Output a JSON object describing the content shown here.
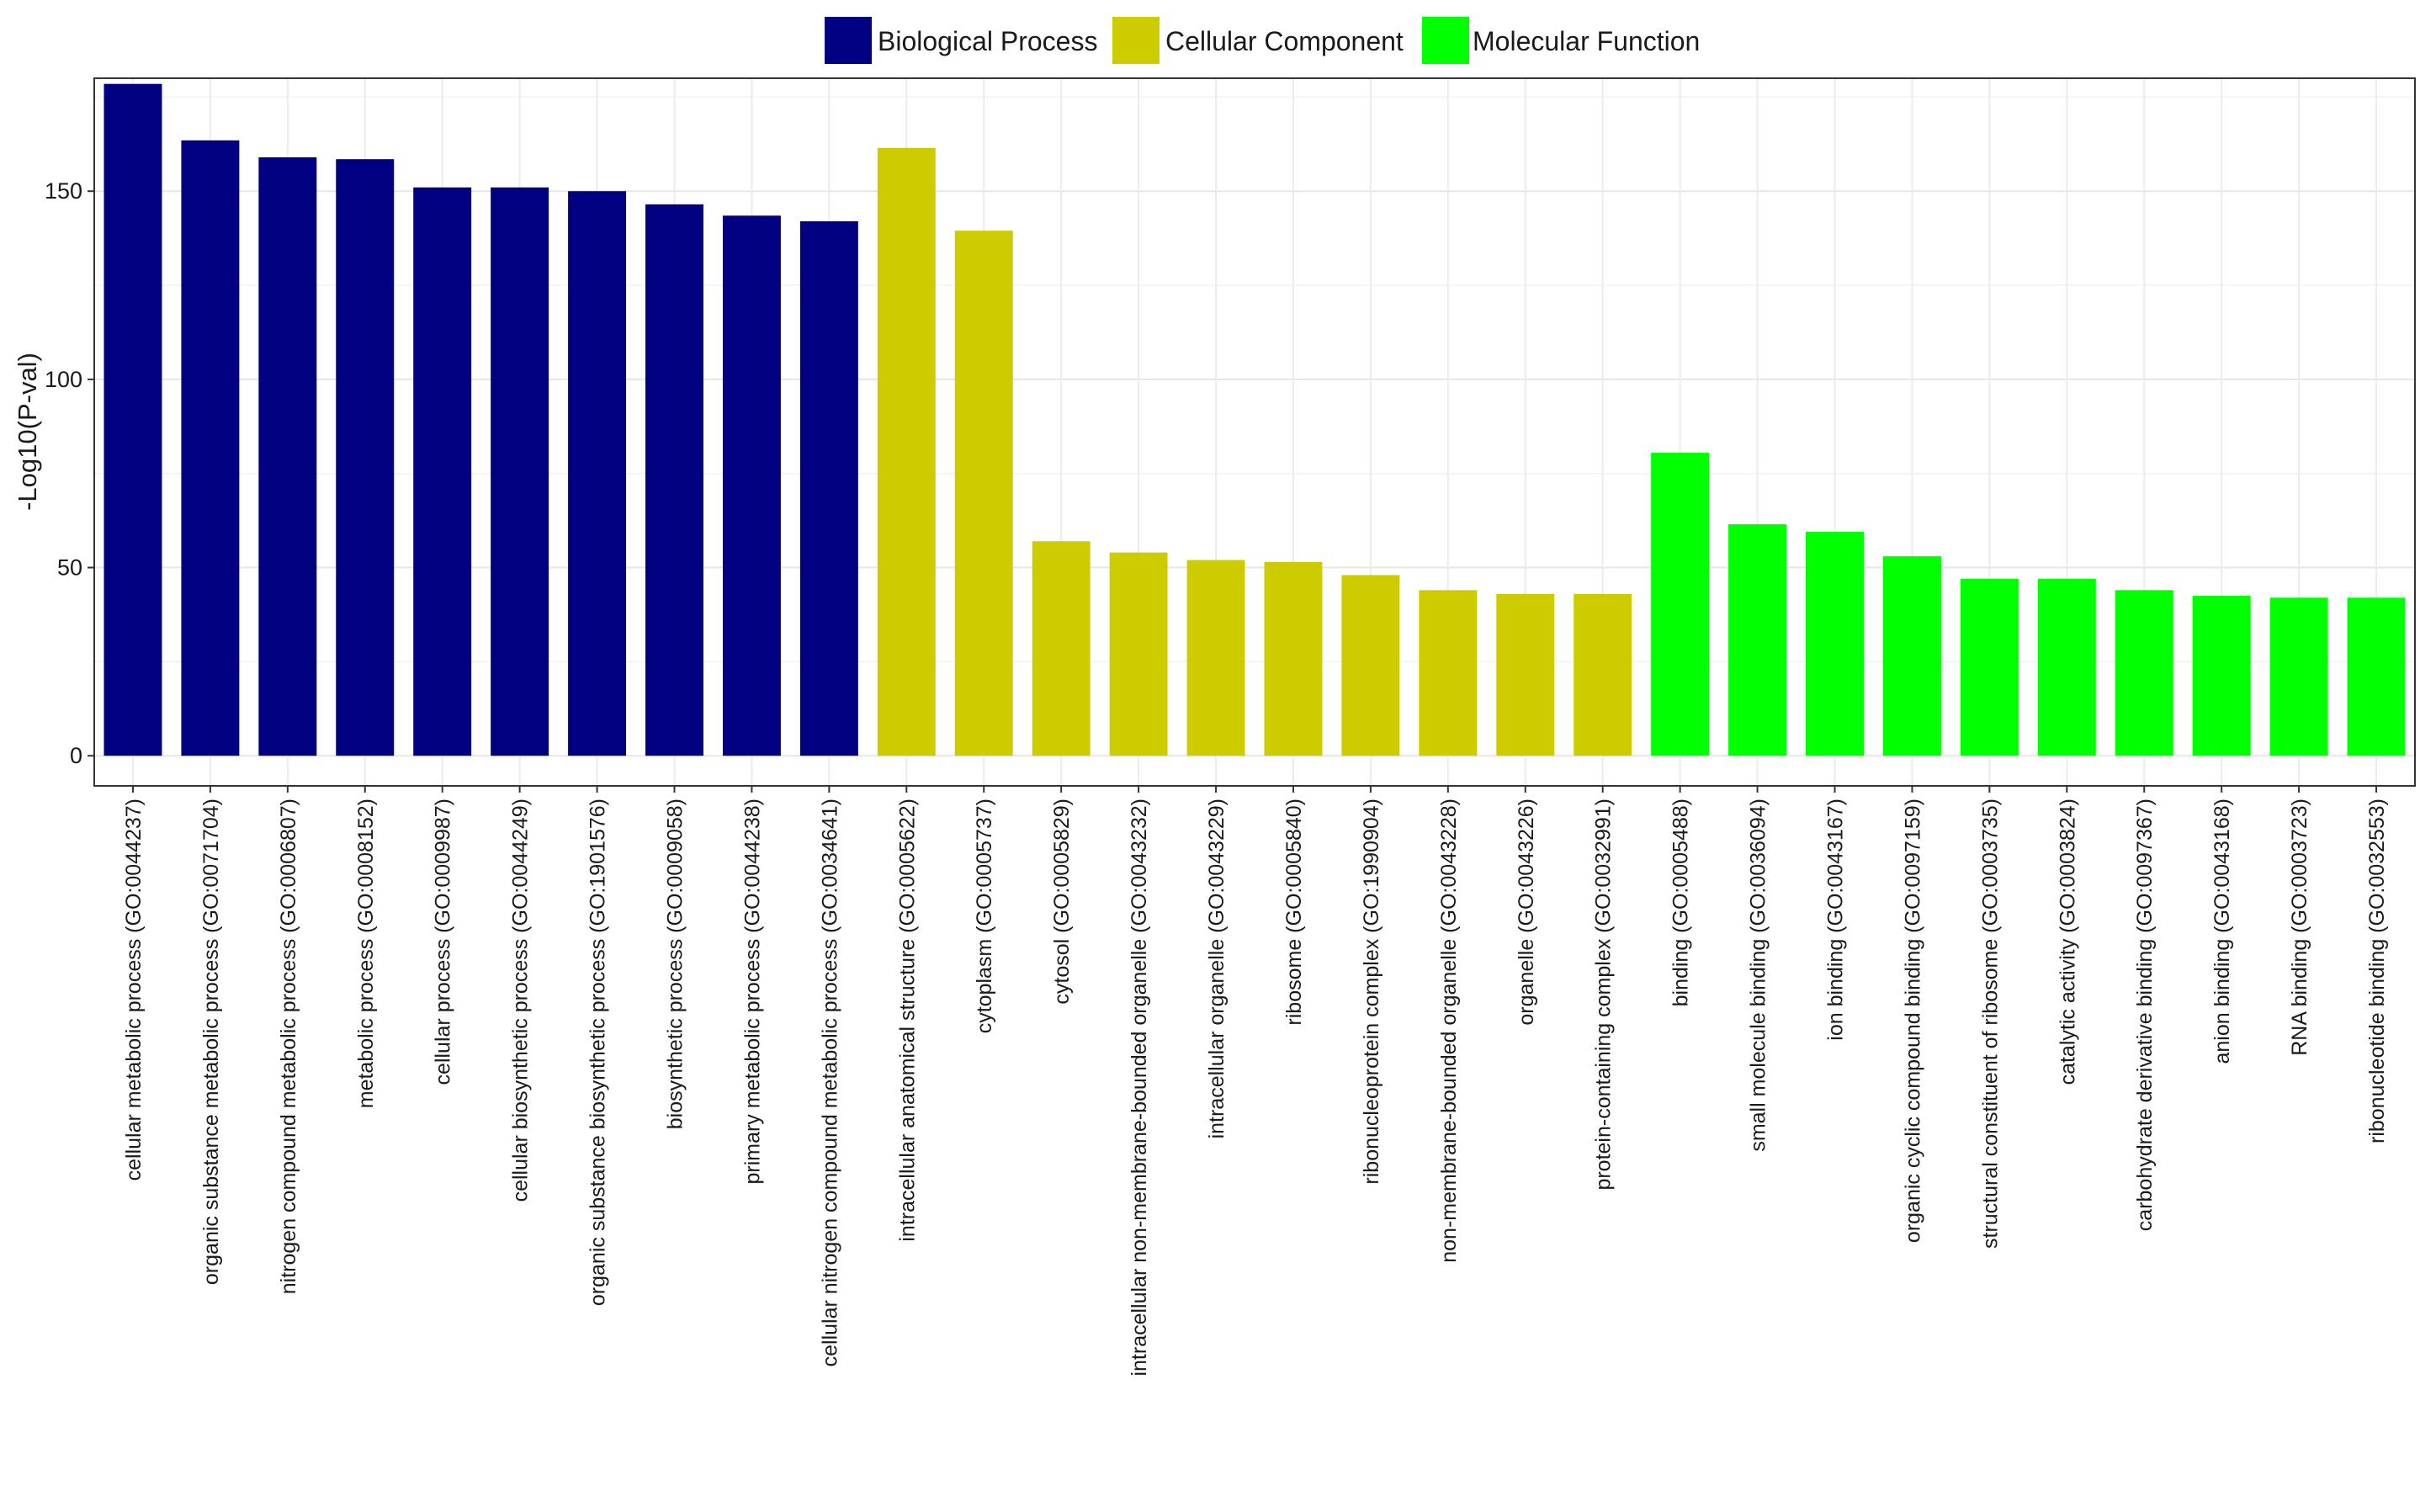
{
  "chart_data": {
    "type": "bar",
    "title": "",
    "xlabel": "",
    "ylabel": "-Log10(P-val)",
    "ylim": [
      -8,
      180
    ],
    "yticks": [
      0,
      50,
      100,
      150
    ],
    "grid": true,
    "legend_position": "top",
    "series": [
      {
        "name": "Biological Process",
        "color": "#000080"
      },
      {
        "name": "Cellular Component",
        "color": "#cccc00"
      },
      {
        "name": "Molecular Function",
        "color": "#00ff00"
      }
    ],
    "categories": [
      "cellular metabolic process (GO:0044237)",
      "organic substance metabolic process (GO:0071704)",
      "nitrogen compound metabolic process (GO:0006807)",
      "metabolic process (GO:0008152)",
      "cellular process (GO:0009987)",
      "cellular biosynthetic process (GO:0044249)",
      "organic substance biosynthetic process (GO:1901576)",
      "biosynthetic process (GO:0009058)",
      "primary metabolic process (GO:0044238)",
      "cellular nitrogen compound metabolic process (GO:0034641)",
      "intracellular anatomical structure (GO:0005622)",
      "cytoplasm (GO:0005737)",
      "cytosol (GO:0005829)",
      "intracellular non-membrane-bounded organelle (GO:0043232)",
      "intracellular organelle (GO:0043229)",
      "ribosome (GO:0005840)",
      "ribonucleoprotein complex (GO:1990904)",
      "non-membrane-bounded organelle (GO:0043228)",
      "organelle (GO:0043226)",
      "protein-containing complex (GO:0032991)",
      "binding (GO:0005488)",
      "small molecule binding (GO:0036094)",
      "ion binding (GO:0043167)",
      "organic cyclic compound binding (GO:0097159)",
      "structural constituent of ribosome (GO:0003735)",
      "catalytic activity (GO:0003824)",
      "carbohydrate derivative binding (GO:0097367)",
      "anion binding (GO:0043168)",
      "RNA binding (GO:0003723)",
      "ribonucleotide binding (GO:0032553)"
    ],
    "values": [
      178.5,
      163.5,
      159,
      158.5,
      151,
      151,
      150,
      146.5,
      143.5,
      142,
      161.5,
      139.5,
      57,
      54,
      52,
      51.5,
      48,
      44,
      43,
      43,
      80.5,
      61.5,
      59.5,
      53,
      47,
      47,
      44,
      42.5,
      42,
      42
    ],
    "groups": [
      0,
      0,
      0,
      0,
      0,
      0,
      0,
      0,
      0,
      0,
      1,
      1,
      1,
      1,
      1,
      1,
      1,
      1,
      1,
      1,
      2,
      2,
      2,
      2,
      2,
      2,
      2,
      2,
      2,
      2
    ]
  }
}
